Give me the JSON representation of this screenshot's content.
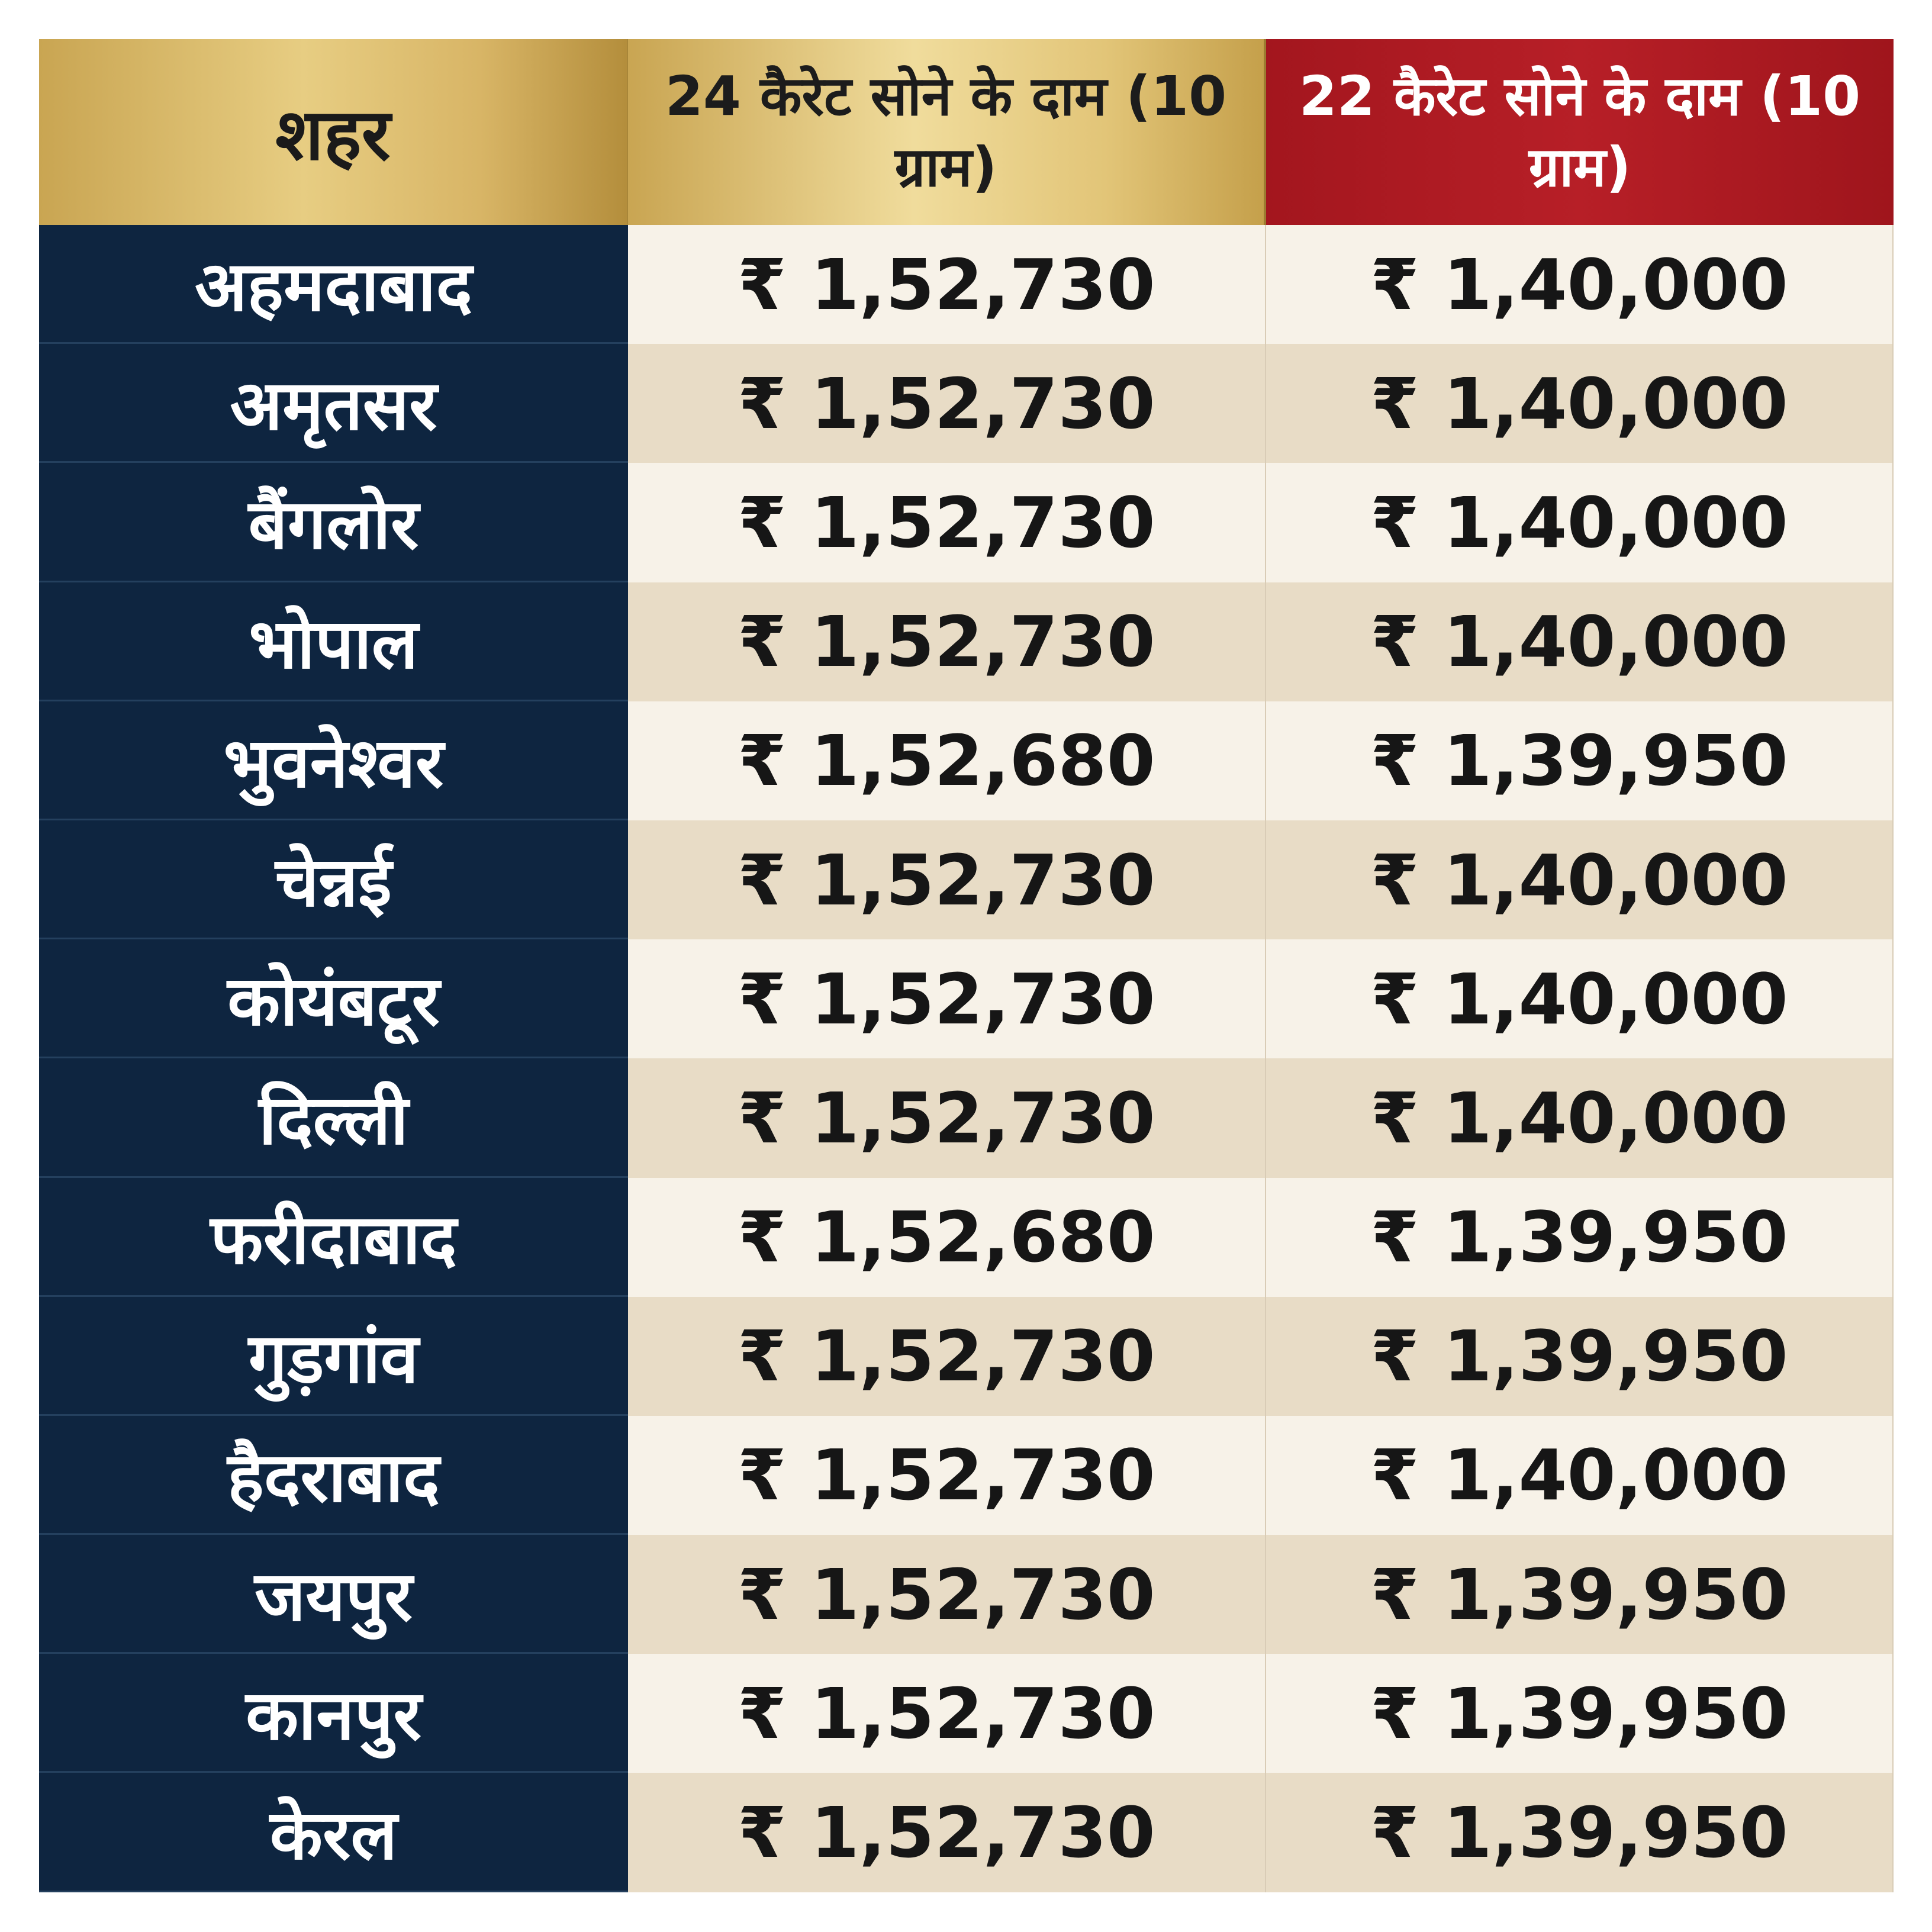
{
  "header": {
    "city": "शहर",
    "price_24k": "24 कैरेट सोने के दाम (10 ग्राम)",
    "price_22k": "22 कैरेट सोने के दाम (10 ग्राम)"
  },
  "rows": [
    {
      "city": "अहमदाबाद",
      "price_24k": "₹ 1,52,730",
      "price_22k": "₹ 1,40,000"
    },
    {
      "city": "अमृतसर",
      "price_24k": "₹ 1,52,730",
      "price_22k": "₹ 1,40,000"
    },
    {
      "city": "बैंगलोर",
      "price_24k": "₹ 1,52,730",
      "price_22k": "₹ 1,40,000"
    },
    {
      "city": "भोपाल",
      "price_24k": "₹ 1,52,730",
      "price_22k": "₹ 1,40,000"
    },
    {
      "city": "भुवनेश्वर",
      "price_24k": "₹ 1,52,680",
      "price_22k": "₹ 1,39,950"
    },
    {
      "city": "चेन्नई",
      "price_24k": "₹ 1,52,730",
      "price_22k": "₹ 1,40,000"
    },
    {
      "city": "कोयंबटूर",
      "price_24k": "₹ 1,52,730",
      "price_22k": "₹ 1,40,000"
    },
    {
      "city": "दिल्ली",
      "price_24k": "₹ 1,52,730",
      "price_22k": "₹ 1,40,000"
    },
    {
      "city": "फरीदाबाद",
      "price_24k": "₹ 1,52,680",
      "price_22k": "₹ 1,39,950"
    },
    {
      "city": "गुड़गांव",
      "price_24k": "₹ 1,52,730",
      "price_22k": "₹ 1,39,950"
    },
    {
      "city": "हैदराबाद",
      "price_24k": "₹ 1,52,730",
      "price_22k": "₹ 1,40,000"
    },
    {
      "city": "जयपुर",
      "price_24k": "₹ 1,52,730",
      "price_22k": "₹ 1,39,950"
    },
    {
      "city": "कानपुर",
      "price_24k": "₹ 1,52,730",
      "price_22k": "₹ 1,39,950"
    },
    {
      "city": "केरल",
      "price_24k": "₹ 1,52,730",
      "price_22k": "₹ 1,39,950"
    }
  ],
  "colors": {
    "gold_header": "#e7cd82",
    "red_header": "#b71f27",
    "city_column": "#0e2540",
    "row_light": "#f7f2e8",
    "row_dark": "#e8dcc6"
  }
}
